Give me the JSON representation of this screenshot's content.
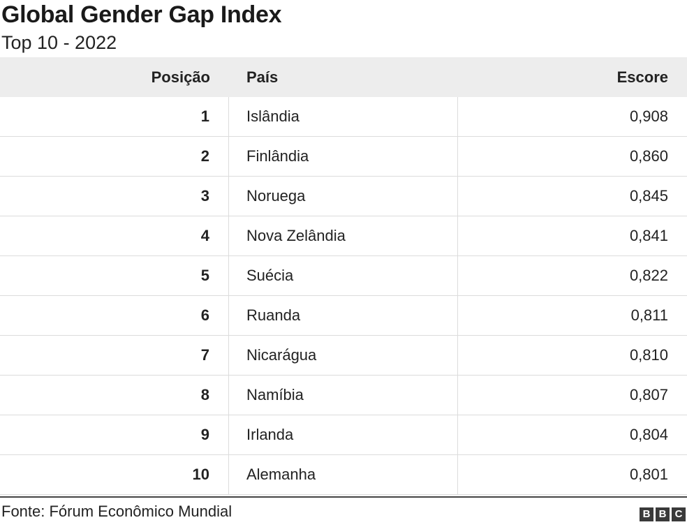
{
  "chart_data": {
    "type": "table",
    "title": "Global Gender Gap Index",
    "subtitle": "Top 10 - 2022",
    "columns": [
      "Posição",
      "País",
      "Escore"
    ],
    "rows": [
      {
        "rank": "1",
        "country": "Islândia",
        "score": "0,908"
      },
      {
        "rank": "2",
        "country": "Finlândia",
        "score": "0,860"
      },
      {
        "rank": "3",
        "country": "Noruega",
        "score": "0,845"
      },
      {
        "rank": "4",
        "country": "Nova Zelândia",
        "score": "0,841"
      },
      {
        "rank": "5",
        "country": "Suécia",
        "score": "0,822"
      },
      {
        "rank": "6",
        "country": "Ruanda",
        "score": "0,811"
      },
      {
        "rank": "7",
        "country": "Nicarágua",
        "score": "0,810"
      },
      {
        "rank": "8",
        "country": "Namíbia",
        "score": "0,807"
      },
      {
        "rank": "9",
        "country": "Irlanda",
        "score": "0,804"
      },
      {
        "rank": "10",
        "country": "Alemanha",
        "score": "0,801"
      }
    ],
    "source": "Fonte: Fórum Econômico Mundial"
  },
  "logo": {
    "letters": [
      "B",
      "B",
      "C"
    ]
  },
  "colors": {
    "header_bg": "#ededed",
    "grid": "#dcdcdc",
    "logo_bg": "#3a3a3a"
  }
}
